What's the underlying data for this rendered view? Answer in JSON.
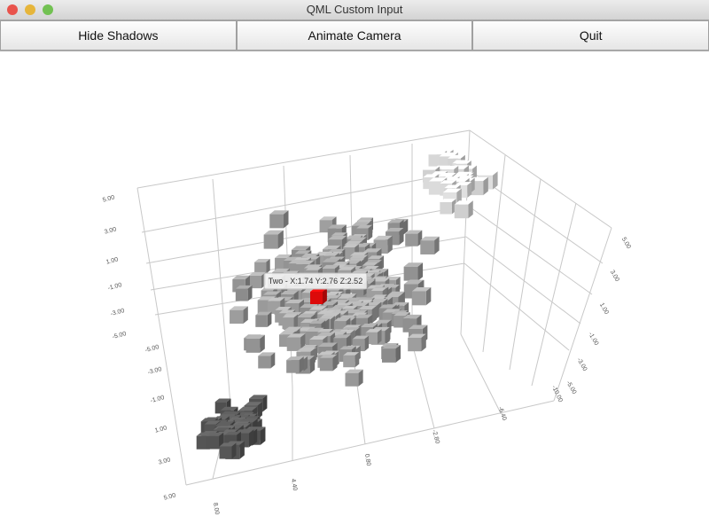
{
  "window": {
    "title": "QML Custom Input"
  },
  "toolbar": {
    "buttons": [
      "Hide Shadows",
      "Animate Camera",
      "Quit"
    ]
  },
  "graph": {
    "tooltip": "Two - X:1.74 Y:2.76 Z:2.52",
    "axes": {
      "y_labels": [
        "5.00",
        "3.00",
        "1.00",
        "-1.00",
        "-3.00",
        "-5.00"
      ],
      "z_labels": [
        "-5.00",
        "-3.00",
        "-1.00",
        "1.00",
        "3.00",
        "5.00"
      ],
      "x_labels": [
        "8.00",
        "4.40",
        "0.80",
        "-2.80",
        "-6.40",
        "-10.00"
      ],
      "right_labels": [
        "5.00",
        "3.00",
        "1.00",
        "-1.00",
        "-3.00",
        "-5.00"
      ]
    }
  }
}
